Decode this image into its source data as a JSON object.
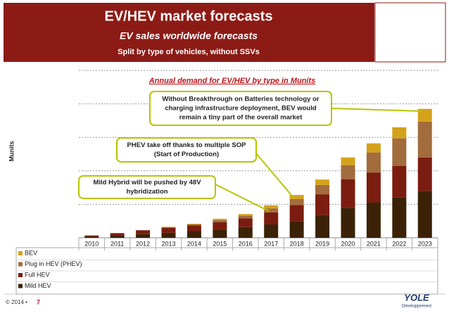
{
  "chart_data": {
    "type": "stacked-bar",
    "title": "EV/HEV market forecasts",
    "subtitle": "EV sales worldwide forecasts",
    "note": "Split by type of vehicles, without SSVs",
    "chart_title": "Annual demand for EV/HEV by type in Munits",
    "y_label": "Munits",
    "categories": [
      "2010",
      "2011",
      "2012",
      "2013",
      "2014",
      "2015",
      "2016",
      "2017",
      "2018",
      "2019",
      "2020",
      "2021",
      "2022",
      "2023"
    ],
    "series": [
      {
        "name": "Mild HEV",
        "color": "#3b2206",
        "values": [
          0.04,
          0.08,
          0.12,
          0.15,
          0.2,
          0.25,
          0.32,
          0.4,
          0.5,
          0.68,
          0.9,
          1.05,
          1.2,
          1.4
        ]
      },
      {
        "name": "Full HEV",
        "color": "#7b1c10",
        "values": [
          0.03,
          0.06,
          0.1,
          0.15,
          0.17,
          0.22,
          0.26,
          0.36,
          0.48,
          0.62,
          0.85,
          0.9,
          0.95,
          1.0
        ]
      },
      {
        "name": "Plug in HEV (PHEV)",
        "color": "#a26c3c",
        "values": [
          0,
          0,
          0.01,
          0.02,
          0.03,
          0.06,
          0.08,
          0.12,
          0.18,
          0.28,
          0.42,
          0.6,
          0.82,
          1.07
        ]
      },
      {
        "name": "BEV",
        "color": "#d4a21a",
        "values": [
          0,
          0,
          0,
          0.01,
          0.02,
          0.04,
          0.05,
          0.09,
          0.12,
          0.16,
          0.23,
          0.27,
          0.33,
          0.38
        ]
      }
    ],
    "ylim": [
      0,
      5
    ],
    "gridlines": [
      1,
      2,
      3,
      4,
      5
    ],
    "annotations": [
      {
        "lines": [
          "Without Breakthrough on Batteries technology or",
          "charging infrastructure deployment, BEV would",
          "remain a tiny part of the overall market"
        ]
      },
      {
        "lines": [
          "PHEV take off thanks to multiple SOP",
          "(Start of Production)"
        ]
      },
      {
        "lines": [
          "Mild Hybrid will be pushed by 48V",
          "hybridization"
        ]
      }
    ],
    "footer": {
      "copyright": "© 2014 •",
      "page": "7",
      "logo": "YOLE",
      "logo_sub": "Développement"
    }
  }
}
